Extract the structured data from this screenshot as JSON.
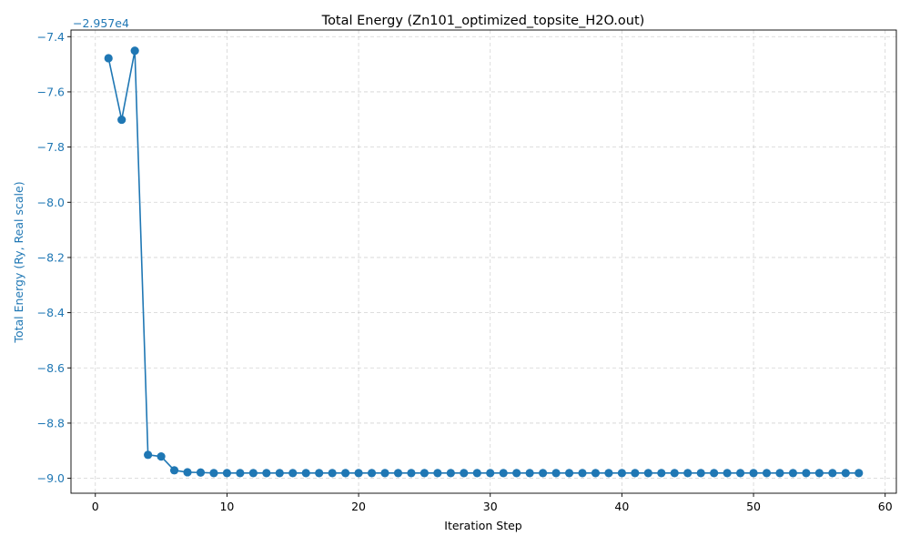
{
  "chart_data": {
    "type": "line",
    "title": "Total Energy (Zn101_optimized_topsite_H2O.out)",
    "xlabel": "Iteration Step",
    "ylabel": "Total Energy (Ry, Real scale)",
    "y_offset_label": "−2.957e4",
    "y_offset_value": -29570,
    "xlim": [
      -1.85,
      60.85
    ],
    "ylim": [
      -9.054,
      -7.376
    ],
    "x_ticks": [
      0,
      10,
      20,
      30,
      40,
      50,
      60
    ],
    "x_tick_labels": [
      "0",
      "10",
      "20",
      "30",
      "40",
      "50",
      "60"
    ],
    "y_ticks": [
      -9.0,
      -8.8,
      -8.6,
      -8.4,
      -8.2,
      -8.0,
      -7.8,
      -7.6,
      -7.4
    ],
    "y_tick_labels": [
      "−9.0",
      "−8.8",
      "−8.6",
      "−8.4",
      "−8.2",
      "−8.0",
      "−7.8",
      "−7.6",
      "−7.4"
    ],
    "grid": true,
    "marker": "circle",
    "series": [
      {
        "color": "#1f77b4",
        "x": [
          1,
          2,
          3,
          4,
          5,
          6,
          7,
          8,
          9,
          10,
          11,
          12,
          13,
          14,
          15,
          16,
          17,
          18,
          19,
          20,
          21,
          22,
          23,
          24,
          25,
          26,
          27,
          28,
          29,
          30,
          31,
          32,
          33,
          34,
          35,
          36,
          37,
          38,
          39,
          40,
          41,
          42,
          43,
          44,
          45,
          46,
          47,
          48,
          49,
          50,
          51,
          52,
          53,
          54,
          55,
          56,
          57,
          58
        ],
        "y": [
          -7.478,
          -7.701,
          -7.451,
          -8.915,
          -8.921,
          -8.971,
          -8.978,
          -8.979,
          -8.981,
          -8.981,
          -8.981,
          -8.981,
          -8.981,
          -8.981,
          -8.981,
          -8.981,
          -8.981,
          -8.981,
          -8.981,
          -8.981,
          -8.981,
          -8.981,
          -8.981,
          -8.981,
          -8.981,
          -8.981,
          -8.981,
          -8.981,
          -8.981,
          -8.981,
          -8.981,
          -8.981,
          -8.981,
          -8.981,
          -8.981,
          -8.981,
          -8.981,
          -8.981,
          -8.981,
          -8.981,
          -8.981,
          -8.981,
          -8.981,
          -8.981,
          -8.981,
          -8.981,
          -8.981,
          -8.981,
          -8.981,
          -8.981,
          -8.981,
          -8.981,
          -8.981,
          -8.981,
          -8.981,
          -8.981,
          -8.981,
          -8.981
        ]
      }
    ],
    "y_axis_color": "#1f77b4"
  }
}
